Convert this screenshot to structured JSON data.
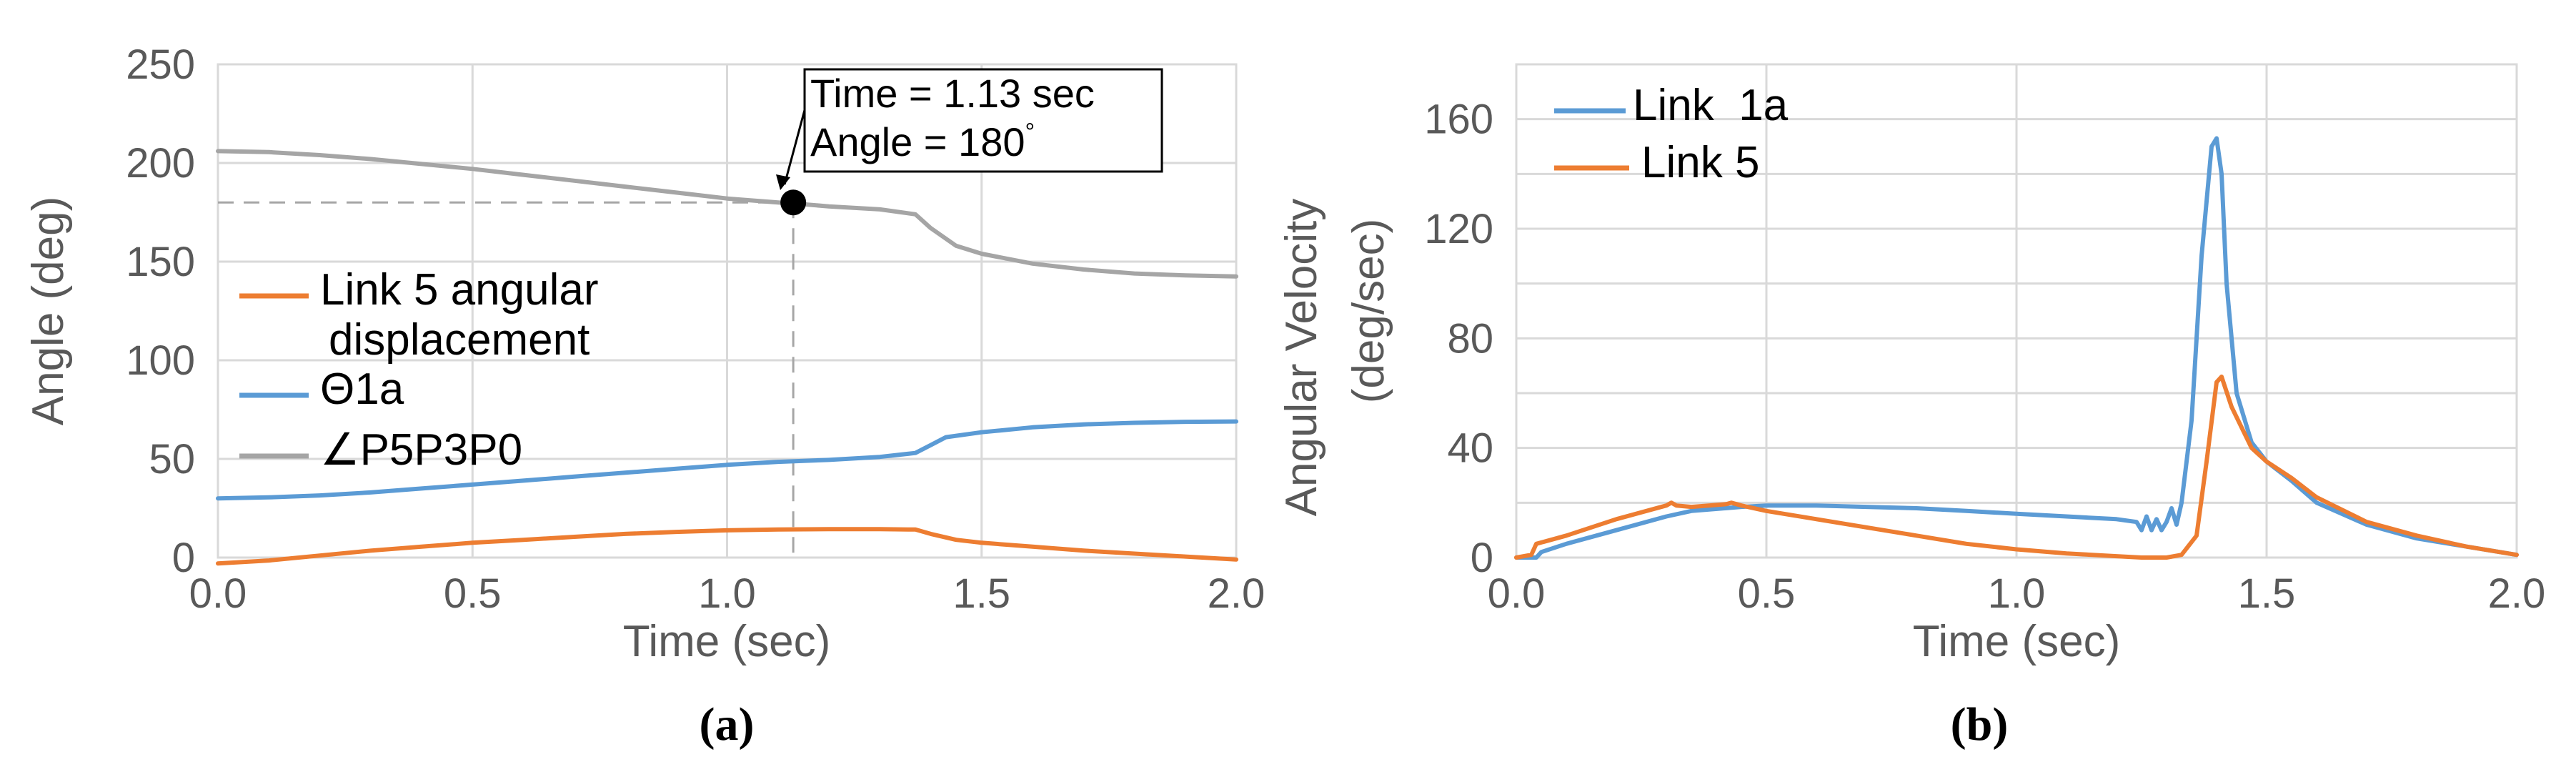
{
  "chart_data": [
    {
      "type": "line",
      "panel_label": "(a)",
      "xlabel": "Time (sec)",
      "ylabel": "Angle (deg)",
      "xlim": [
        0,
        2
      ],
      "ylim": [
        0,
        250
      ],
      "xticks": [
        "0.0",
        "0.5",
        "1.0",
        "1.5",
        "2.0"
      ],
      "yticks": [
        "0",
        "50",
        "100",
        "150",
        "200",
        "250"
      ],
      "xtick_values": [
        0,
        0.5,
        1.0,
        1.5,
        2.0
      ],
      "ytick_values": [
        0,
        50,
        100,
        150,
        200,
        250
      ],
      "legend": [
        "Link 5 angular",
        "displacement",
        "Θ1a",
        "∠P5P3P0"
      ],
      "series": [
        {
          "name": "Link 5 angular displacement",
          "color": "#ed7d31",
          "x": [
            0.0,
            0.1,
            0.2,
            0.3,
            0.4,
            0.5,
            0.6,
            0.7,
            0.8,
            0.9,
            1.0,
            1.1,
            1.2,
            1.3,
            1.37,
            1.4,
            1.45,
            1.5,
            1.6,
            1.7,
            1.8,
            1.9,
            2.0
          ],
          "y": [
            -3,
            -1.5,
            1,
            3.5,
            5.5,
            7.5,
            9,
            10.5,
            12,
            13,
            13.8,
            14.2,
            14.4,
            14.4,
            14.2,
            12,
            9,
            7.5,
            5.5,
            3.5,
            2,
            0.5,
            -1
          ]
        },
        {
          "name": "Θ1a",
          "color": "#5b9bd5",
          "x": [
            0.0,
            0.1,
            0.2,
            0.3,
            0.4,
            0.5,
            0.6,
            0.7,
            0.8,
            0.9,
            1.0,
            1.1,
            1.2,
            1.3,
            1.37,
            1.4,
            1.43,
            1.5,
            1.6,
            1.7,
            1.8,
            1.9,
            2.0
          ],
          "y": [
            30,
            30.5,
            31.5,
            33,
            35,
            37,
            39,
            41,
            43,
            45,
            47,
            48.5,
            49.5,
            51,
            53,
            57,
            61,
            63.5,
            66,
            67.5,
            68.3,
            68.8,
            69
          ]
        },
        {
          "name": "∠P5P3P0",
          "color": "#a5a5a5",
          "x": [
            0.0,
            0.1,
            0.2,
            0.3,
            0.4,
            0.5,
            0.6,
            0.7,
            0.8,
            0.9,
            1.0,
            1.1,
            1.13,
            1.2,
            1.3,
            1.37,
            1.4,
            1.45,
            1.5,
            1.6,
            1.7,
            1.8,
            1.9,
            2.0
          ],
          "y": [
            206,
            205.5,
            204,
            202,
            199.5,
            197,
            194,
            191,
            188,
            185,
            182,
            180,
            179.5,
            178,
            176.5,
            174,
            167,
            158,
            154,
            149,
            146,
            144,
            143,
            142.5
          ]
        }
      ],
      "annotation": {
        "x": 1.13,
        "y": 180,
        "line1": "Time = 1.13 sec",
        "line2": "Angle = 180",
        "degree": "°"
      }
    },
    {
      "type": "line",
      "panel_label": "(b)",
      "xlabel": "Time (sec)",
      "ylabel_line1": "Angular Velocity",
      "ylabel_line2": "(deg/sec)",
      "xlim": [
        0,
        2
      ],
      "ylim": [
        0,
        180
      ],
      "xticks": [
        "0.0",
        "0.5",
        "1.0",
        "1.5",
        "2.0"
      ],
      "yticks": [
        "0",
        "40",
        "80",
        "120",
        "160"
      ],
      "xtick_values": [
        0,
        0.5,
        1.0,
        1.5,
        2.0
      ],
      "ytick_values": [
        0,
        40,
        80,
        120,
        160
      ],
      "legend": [
        "Link  1a",
        "Link 5"
      ],
      "series": [
        {
          "name": "Link  1a",
          "color": "#5b9bd5",
          "x": [
            0.0,
            0.04,
            0.05,
            0.1,
            0.2,
            0.3,
            0.35,
            0.45,
            0.5,
            0.6,
            0.7,
            0.8,
            0.9,
            1.0,
            1.1,
            1.2,
            1.24,
            1.25,
            1.26,
            1.27,
            1.28,
            1.29,
            1.3,
            1.31,
            1.32,
            1.33,
            1.35,
            1.37,
            1.39,
            1.4,
            1.41,
            1.42,
            1.44,
            1.47,
            1.5,
            1.55,
            1.6,
            1.7,
            1.8,
            1.9,
            2.0
          ],
          "y": [
            0,
            0,
            2,
            5,
            10,
            15,
            17,
            18.5,
            19,
            19,
            18.5,
            18,
            17,
            16,
            15,
            14,
            13,
            10,
            15,
            10,
            14,
            10,
            13,
            18,
            12,
            20,
            50,
            110,
            150,
            153,
            140,
            100,
            60,
            42,
            35,
            28,
            20,
            12,
            7,
            4,
            1
          ]
        },
        {
          "name": "Link 5",
          "color": "#ed7d31",
          "x": [
            0.0,
            0.03,
            0.04,
            0.1,
            0.2,
            0.3,
            0.31,
            0.32,
            0.35,
            0.42,
            0.43,
            0.45,
            0.5,
            0.6,
            0.7,
            0.8,
            0.9,
            1.0,
            1.1,
            1.2,
            1.25,
            1.3,
            1.33,
            1.36,
            1.38,
            1.4,
            1.41,
            1.43,
            1.47,
            1.5,
            1.55,
            1.6,
            1.7,
            1.8,
            1.9,
            2.0
          ],
          "y": [
            0,
            1,
            5,
            8,
            14,
            19,
            20,
            19,
            18.5,
            19.5,
            20,
            19,
            17,
            14,
            11,
            8,
            5,
            3,
            1.5,
            0.5,
            0,
            0,
            1,
            8,
            35,
            64,
            66,
            55,
            40,
            35,
            29,
            22,
            13,
            8,
            4,
            1
          ]
        }
      ]
    }
  ]
}
